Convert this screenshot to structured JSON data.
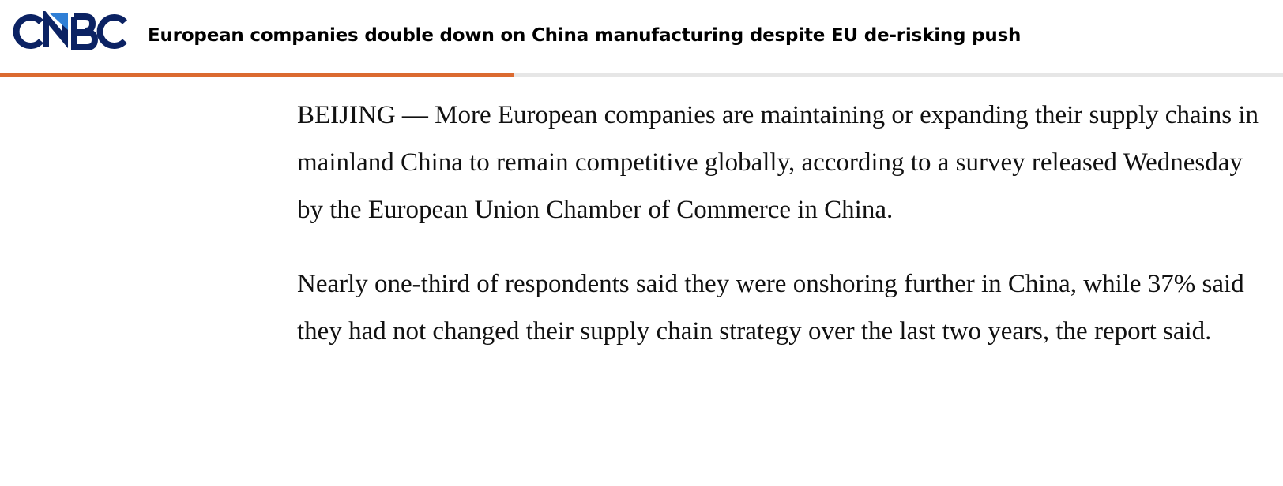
{
  "header": {
    "logo_text": "CNBC",
    "headline": "European companies double down on China manufacturing despite EU de-risking push"
  },
  "reading_progress": 0.4,
  "colors": {
    "progress_accent": "#db6a30",
    "logo_navy": "#0b2263",
    "logo_blue": "#2f7fd6"
  },
  "article": {
    "paragraphs": [
      "BEIJING — More European companies are maintaining or expanding their supply chains in mainland China to remain competitive globally, according to a survey released Wednesday by the European Union Chamber of Commerce in China.",
      "Nearly one-third of respondents said they were onshoring further in China, while 37% said they had not changed their supply chain strategy over the last two years, the report said."
    ]
  }
}
